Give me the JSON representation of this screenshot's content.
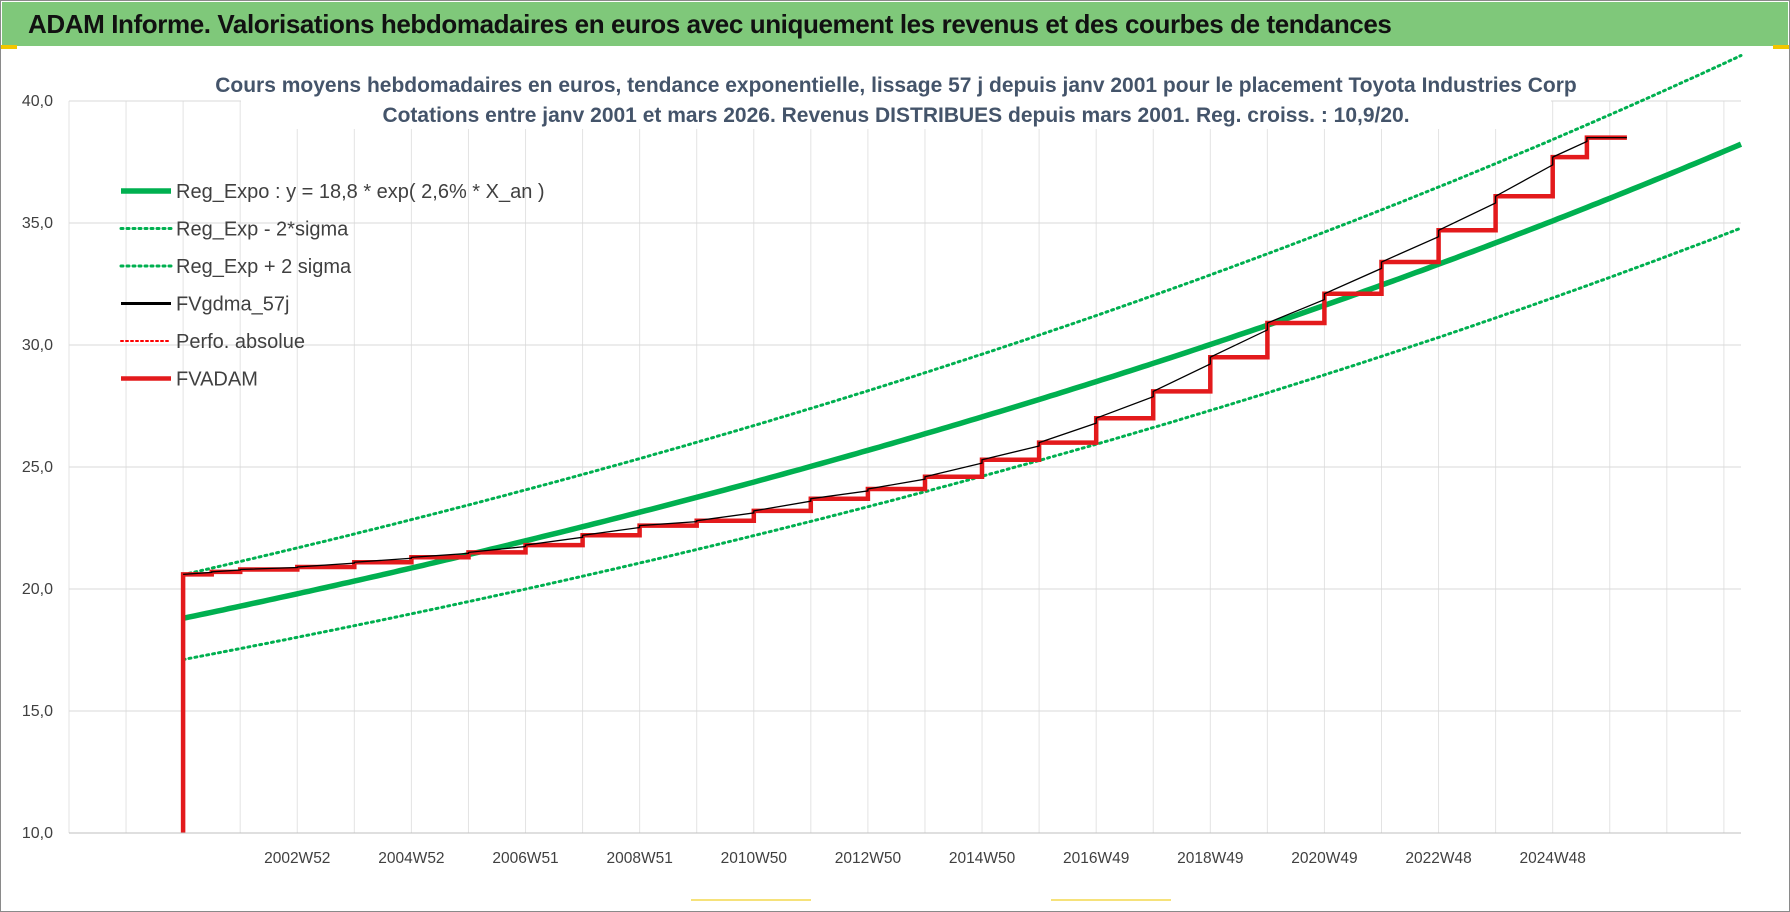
{
  "banner": {
    "title": "ADAM Informe. Valorisations hebdomadaires en euros avec uniquement les revenus et des courbes de tendances",
    "background": "#7fc87a"
  },
  "chart_data": {
    "type": "line",
    "title_lines": [
      "Cours moyens hebdomadaires en euros, tendance exponentielle, lissage 57 j depuis janv 2001 pour le placement Toyota Industries Corp",
      "Cotations entre janv 2001 et mars 2026. Revenus DISTRIBUES depuis mars 2001. Reg. croiss. : 10,9/20."
    ],
    "xlabel": "",
    "ylabel": "",
    "x_range": [
      1999.0,
      2028.3
    ],
    "ylim": [
      10,
      40
    ],
    "yticks": [
      "10,0",
      "15,0",
      "20,0",
      "25,0",
      "30,0",
      "35,0",
      "40,0"
    ],
    "ytick_values": [
      10,
      15,
      20,
      25,
      30,
      35,
      40
    ],
    "xtick_labels": [
      "2002W52",
      "2004W52",
      "2006W51",
      "2008W51",
      "2010W50",
      "2012W50",
      "2014W50",
      "2016W49",
      "2018W49",
      "2020W49",
      "2022W48",
      "2024W48"
    ],
    "xtick_positions": [
      2003.0,
      2005.0,
      2007.0,
      2009.0,
      2011.0,
      2013.0,
      2015.0,
      2017.0,
      2019.0,
      2021.0,
      2023.0,
      2025.0
    ],
    "grid": true,
    "legend_position": "top-left",
    "regression": {
      "a": 18.8,
      "rate": 0.026,
      "x_start": 2001.0,
      "x_end": 2028.3,
      "sigma_factor_low": 0.91,
      "sigma_factor_high": 1.095
    },
    "series": [
      {
        "name": "Reg_Expo : y = 18,8 * exp( 2,6% *  X_an )",
        "color": "#00b050",
        "style": "thick"
      },
      {
        "name": "Reg_Exp - 2*sigma",
        "color": "#00b050",
        "style": "dotted"
      },
      {
        "name": "Reg_Exp + 2 sigma",
        "color": "#00b050",
        "style": "dotted"
      },
      {
        "name": "FVgdma_57j",
        "color": "#000000",
        "style": "solid"
      },
      {
        "name": "Perfo. absolue",
        "color": "#ff0000",
        "style": "dotted"
      },
      {
        "name": "FVADAM",
        "color": "#e31a1c",
        "style": "thick",
        "points": [
          [
            2001.0,
            10.0
          ],
          [
            2001.0,
            20.6
          ],
          [
            2001.5,
            20.7
          ],
          [
            2002.0,
            20.8
          ],
          [
            2003.0,
            20.9
          ],
          [
            2004.0,
            21.1
          ],
          [
            2005.0,
            21.3
          ],
          [
            2006.0,
            21.5
          ],
          [
            2007.0,
            21.8
          ],
          [
            2008.0,
            22.2
          ],
          [
            2009.0,
            22.6
          ],
          [
            2010.0,
            22.8
          ],
          [
            2011.0,
            23.2
          ],
          [
            2012.0,
            23.7
          ],
          [
            2013.0,
            24.1
          ],
          [
            2014.0,
            24.6
          ],
          [
            2015.0,
            25.3
          ],
          [
            2016.0,
            26.0
          ],
          [
            2017.0,
            27.0
          ],
          [
            2018.0,
            28.1
          ],
          [
            2019.0,
            29.5
          ],
          [
            2020.0,
            30.9
          ],
          [
            2021.0,
            32.1
          ],
          [
            2022.0,
            33.4
          ],
          [
            2023.0,
            34.7
          ],
          [
            2024.0,
            36.1
          ],
          [
            2025.0,
            37.7
          ],
          [
            2025.6,
            38.5
          ],
          [
            2026.0,
            38.5
          ],
          [
            2026.3,
            38.5
          ]
        ]
      }
    ]
  }
}
